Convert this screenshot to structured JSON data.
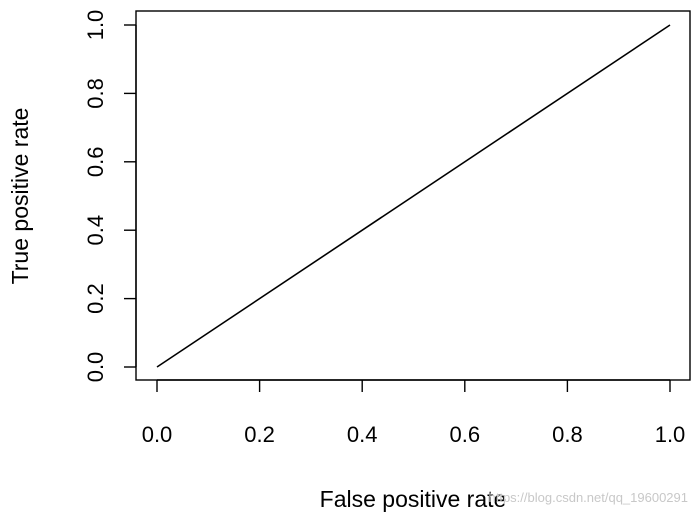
{
  "chart_data": {
    "type": "line",
    "title": "",
    "xlabel": "False positive rate",
    "ylabel": "True positive rate",
    "xlim": [
      0.0,
      1.0
    ],
    "ylim": [
      0.0,
      1.0
    ],
    "x_ticks": [
      "0.0",
      "0.2",
      "0.4",
      "0.6",
      "0.8",
      "1.0"
    ],
    "y_ticks": [
      "0.0",
      "0.2",
      "0.4",
      "0.6",
      "0.8",
      "1.0"
    ],
    "grid": false,
    "legend": "none",
    "series": [
      {
        "x": [
          0.0,
          1.0
        ],
        "y": [
          0.0,
          1.0
        ],
        "color": "#000000"
      }
    ]
  },
  "watermark": "https://blog.csdn.net/qq_19600291"
}
